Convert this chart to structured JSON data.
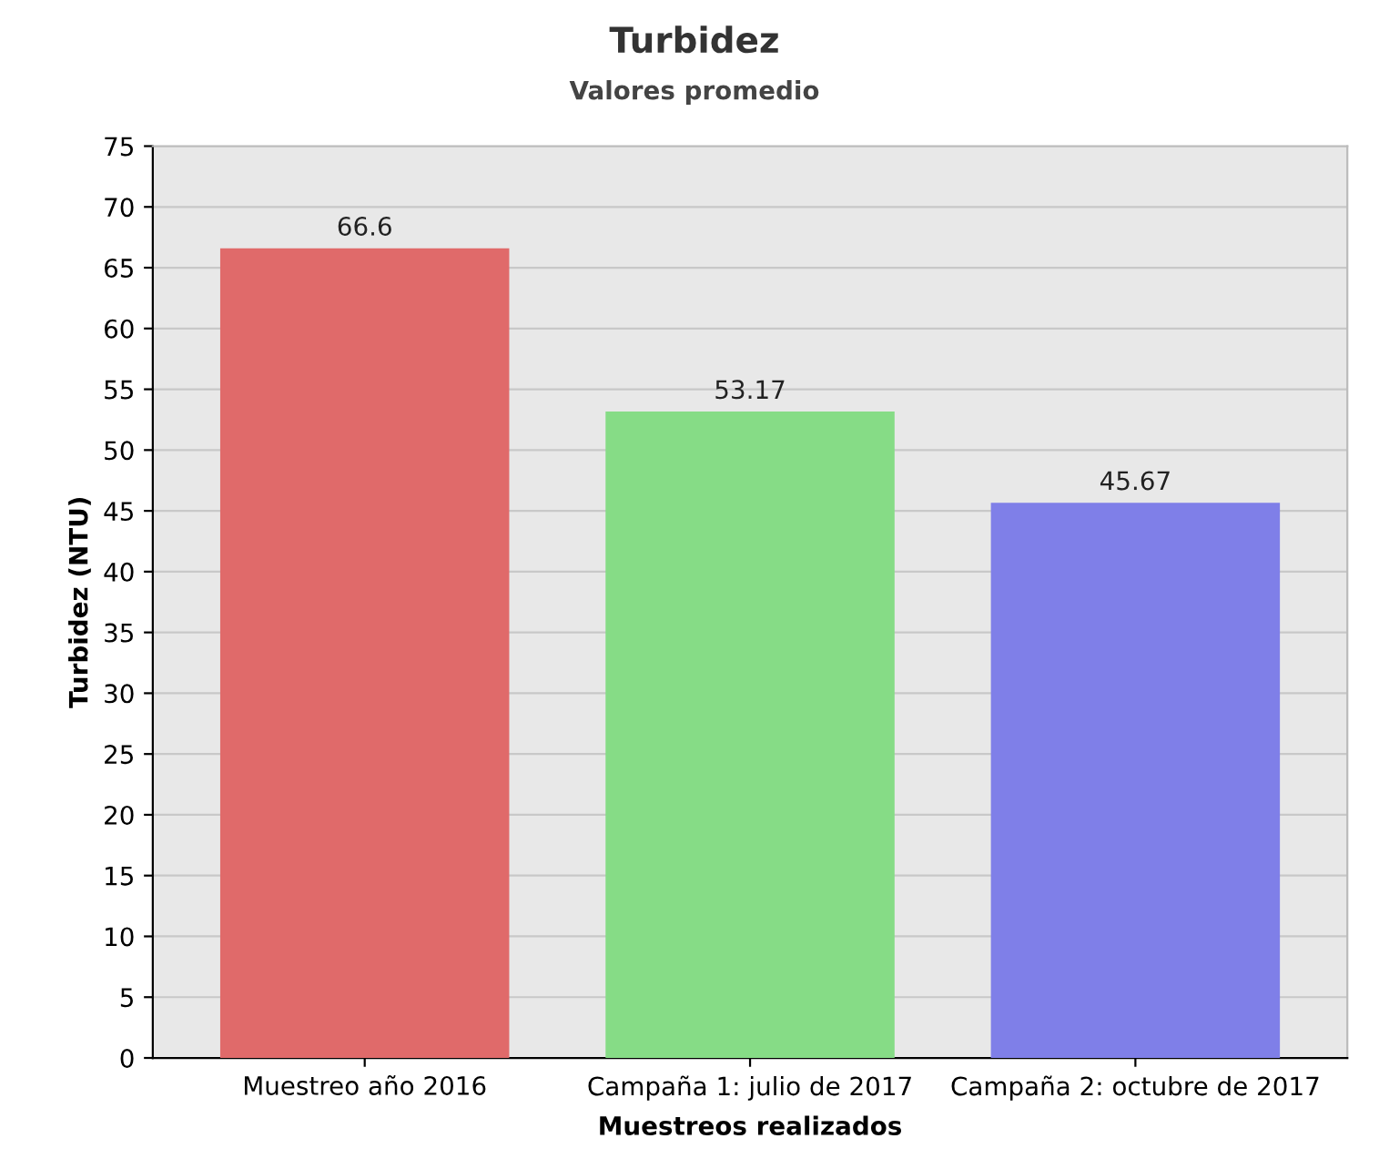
{
  "chart_data": {
    "type": "bar",
    "title": "Turbidez",
    "subtitle": "Valores promedio",
    "xlabel": "Muestreos realizados",
    "ylabel": "Turbidez (NTU)",
    "categories": [
      "Muestreo año 2016",
      "Campaña 1: julio de 2017",
      "Campaña 2: octubre de 2017"
    ],
    "values": [
      66.6,
      53.17,
      45.67
    ],
    "colors": [
      "#e06a6a",
      "#86dc86",
      "#7f7fe8"
    ],
    "ylim": [
      0,
      75
    ],
    "yticks": [
      0,
      5,
      10,
      15,
      20,
      25,
      30,
      35,
      40,
      45,
      50,
      55,
      60,
      65,
      70,
      75
    ],
    "grid": "y",
    "data_labels": true
  }
}
